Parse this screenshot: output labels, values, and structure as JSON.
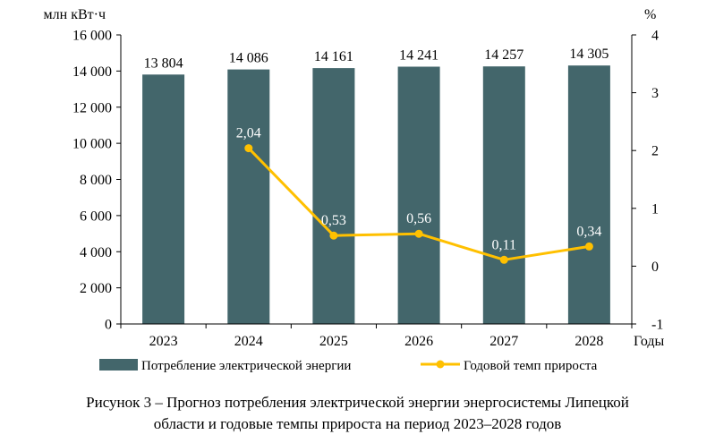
{
  "chart_data": {
    "type": "bar",
    "categories": [
      "2023",
      "2024",
      "2025",
      "2026",
      "2027",
      "2028"
    ],
    "series": [
      {
        "name": "Потребление электрической энергии",
        "type": "bar",
        "axis": "left",
        "values": [
          13804,
          14086,
          14161,
          14241,
          14257,
          14305
        ],
        "labels": [
          "13 804",
          "14 086",
          "14 161",
          "14 241",
          "14 257",
          "14 305"
        ],
        "color": "#43666b"
      },
      {
        "name": "Годовой темп прироста",
        "type": "line",
        "axis": "right",
        "values": [
          null,
          2.04,
          0.53,
          0.56,
          0.11,
          0.34
        ],
        "labels": [
          "",
          "2,04",
          "0,53",
          "0,56",
          "0,11",
          "0,34"
        ],
        "color": "#ffc000"
      }
    ],
    "y_left": {
      "unit_label": "млн кВт·ч",
      "ylim": [
        0,
        16000
      ],
      "ticks": [
        0,
        2000,
        4000,
        6000,
        8000,
        10000,
        12000,
        14000,
        16000
      ],
      "tick_labels": [
        "0",
        "2 000",
        "4 000",
        "6 000",
        "8 000",
        "10 000",
        "12 000",
        "14 000",
        "16 000"
      ]
    },
    "y_right": {
      "unit_label": "%",
      "ylim": [
        -1,
        4
      ],
      "ticks": [
        -1,
        0,
        1,
        2,
        3,
        4
      ],
      "tick_labels": [
        "-1",
        "0",
        "1",
        "2",
        "3",
        "4"
      ]
    },
    "xlabel": "Годы",
    "grid": false,
    "legend_position": "bottom"
  },
  "caption": {
    "line1": "Рисунок 3 – Прогноз потребления электрической энергии энергосистемы Липецкой",
    "line2": "области и годовые темпы прироста на период 2023–2028 годов"
  }
}
